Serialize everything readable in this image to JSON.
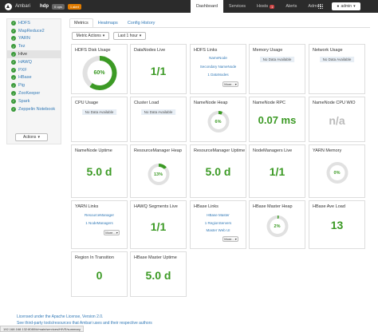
{
  "topbar": {
    "brand": "Ambari",
    "cluster": "hdp",
    "ops_badge": "0 ops",
    "alerts_badge": "1 alert",
    "nav": [
      {
        "label": "Dashboard",
        "count": ""
      },
      {
        "label": "Services",
        "count": ""
      },
      {
        "label": "Hosts",
        "count": "1"
      },
      {
        "label": "Alerts",
        "count": ""
      },
      {
        "label": "Admin",
        "count": ""
      }
    ],
    "user": "admin"
  },
  "sidebar": {
    "services": [
      "HDFS",
      "MapReduce2",
      "YARN",
      "Tez",
      "Hive",
      "HAWQ",
      "PXF",
      "HBase",
      "Pig",
      "ZooKeeper",
      "Spark",
      "Zeppelin Notebook"
    ],
    "active": "Hive",
    "actions_label": "Actions"
  },
  "tabs": [
    "Metrics",
    "Heatmaps",
    "Config History"
  ],
  "toolbar": {
    "metric_actions": "Metric Actions",
    "time_range": "Last 1 hour"
  },
  "widgets": {
    "hdfs_disk_usage": {
      "title": "HDFS Disk Usage",
      "gauge": "60%",
      "percent": 60
    },
    "datanodes_live": {
      "title": "DataNodes Live",
      "value": "1/1"
    },
    "hdfs_links": {
      "title": "HDFS Links",
      "links": [
        "NameNode",
        "Secondary NameNode",
        "1 DataNodes"
      ],
      "more": "More..."
    },
    "memory_usage": {
      "title": "Memory Usage",
      "nodata": "No Data Available"
    },
    "network_usage": {
      "title": "Network Usage",
      "nodata": "No Data Available"
    },
    "cpu_usage": {
      "title": "CPU Usage",
      "nodata": "No Data Available"
    },
    "cluster_load": {
      "title": "Cluster Load",
      "nodata": "No Data Available"
    },
    "namenode_heap": {
      "title": "NameNode Heap",
      "gauge": "6%",
      "percent": 6
    },
    "namenode_rpc": {
      "title": "NameNode RPC",
      "value": "0.07 ms"
    },
    "namenode_cpu_wio": {
      "title": "NameNode CPU WIO",
      "value": "n/a"
    },
    "namenode_uptime": {
      "title": "NameNode Uptime",
      "value": "5.0 d"
    },
    "resourcemanager_heap": {
      "title": "ResourceManager Heap",
      "gauge": "13%",
      "percent": 13
    },
    "resourcemanager_uptime": {
      "title": "ResourceManager Uptime",
      "value": "5.0 d"
    },
    "nodemanagers_live": {
      "title": "NodeManagers Live",
      "value": "1/1"
    },
    "yarn_memory": {
      "title": "YARN Memory",
      "gauge": "0%",
      "percent": 0
    },
    "yarn_links": {
      "title": "YARN Links",
      "links": [
        "ResourceManager",
        "1 NodeManagers"
      ],
      "more": "More..."
    },
    "hawq_segments_live": {
      "title": "HAWQ Segments Live",
      "value": "1/1"
    },
    "hbase_links": {
      "title": "HBase Links",
      "links": [
        "HBase Master",
        "1 RegionServers",
        "Master Web UI"
      ],
      "more": "More..."
    },
    "hbase_master_heap": {
      "title": "HBase Master Heap",
      "gauge": "2%",
      "percent": 2
    },
    "hbase_ave_load": {
      "title": "HBase Ave Load",
      "value": "13"
    },
    "region_in_transition": {
      "title": "Region In Transition",
      "value": "0"
    },
    "hbase_master_uptime": {
      "title": "HBase Master Uptime",
      "value": "5.0 d"
    }
  },
  "footer": {
    "license": "Licensed under the Apache License, Version 2.0.",
    "third_party": "See third-party tools/resources that Ambari uses and their respective authors"
  },
  "status_url": "192.168.168.132:8080/#/main/services/HIVE/summary",
  "colors": {
    "accent": "#3c9a25",
    "gauge_track": "#e1e1e1",
    "nav_bg": "#2b2b2b",
    "link": "#337ab7"
  }
}
